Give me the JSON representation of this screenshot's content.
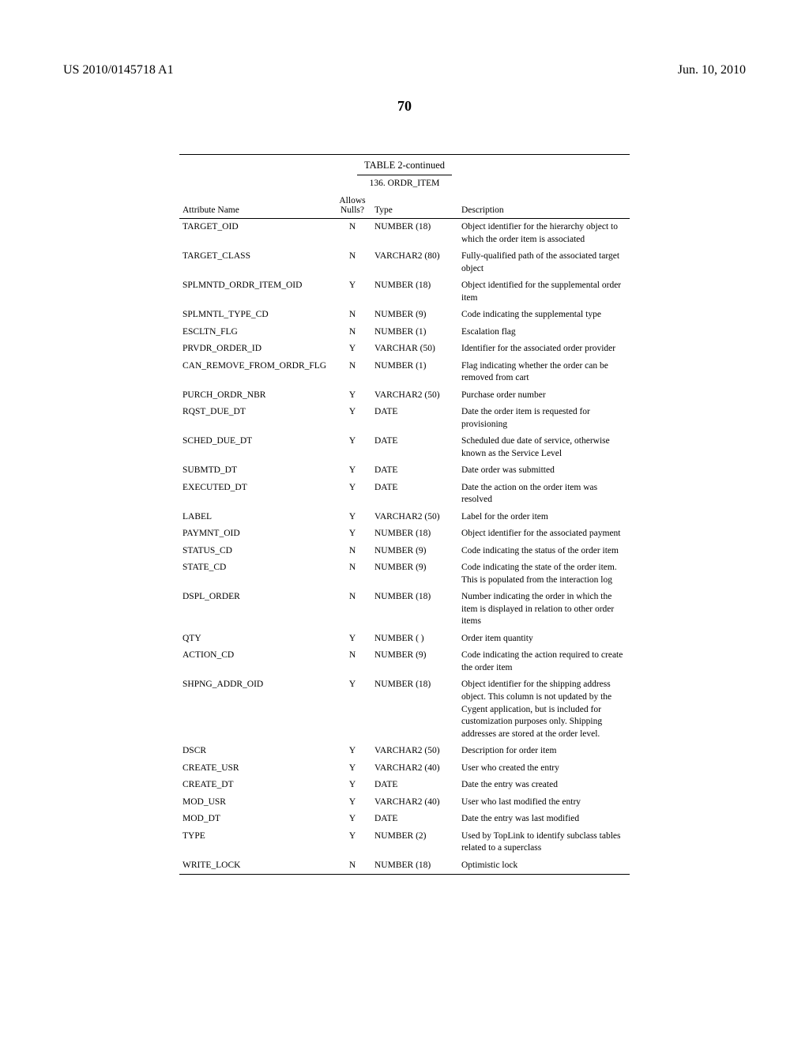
{
  "header": {
    "left": "US 2010/0145718 A1",
    "right": "Jun. 10, 2010",
    "page_number": "70"
  },
  "table": {
    "title": "TABLE 2-continued",
    "subtitle": "136. ORDR_ITEM",
    "columns": {
      "attr": "Attribute Name",
      "nulls_line1": "Allows",
      "nulls_line2": "Nulls?",
      "type": "Type",
      "desc": "Description"
    },
    "rows": [
      {
        "name": "TARGET_OID",
        "nulls": "N",
        "type": "NUMBER (18)",
        "desc": "Object identifier for the hierarchy object to which the order item is associated"
      },
      {
        "name": "TARGET_CLASS",
        "nulls": "N",
        "type": "VARCHAR2 (80)",
        "desc": "Fully-qualified path of the associated target object"
      },
      {
        "name": "SPLMNTD_ORDR_ITEM_OID",
        "nulls": "Y",
        "type": "NUMBER (18)",
        "desc": "Object identified for the supplemental order item"
      },
      {
        "name": "SPLMNTL_TYPE_CD",
        "nulls": "N",
        "type": "NUMBER (9)",
        "desc": "Code indicating the supplemental type"
      },
      {
        "name": "ESCLTN_FLG",
        "nulls": "N",
        "type": "NUMBER (1)",
        "desc": "Escalation flag"
      },
      {
        "name": "PRVDR_ORDER_ID",
        "nulls": "Y",
        "type": "VARCHAR (50)",
        "desc": "Identifier for the associated order provider"
      },
      {
        "name": "CAN_REMOVE_FROM_ORDR_FLG",
        "nulls": "N",
        "type": "NUMBER (1)",
        "desc": "Flag indicating whether the order can be removed from cart"
      },
      {
        "name": "PURCH_ORDR_NBR",
        "nulls": "Y",
        "type": "VARCHAR2 (50)",
        "desc": "Purchase order number"
      },
      {
        "name": "RQST_DUE_DT",
        "nulls": "Y",
        "type": "DATE",
        "desc": "Date the order item is requested for provisioning"
      },
      {
        "name": "SCHED_DUE_DT",
        "nulls": "Y",
        "type": "DATE",
        "desc": "Scheduled due date of service, otherwise known as the Service Level"
      },
      {
        "name": "SUBMTD_DT",
        "nulls": "Y",
        "type": "DATE",
        "desc": "Date order was submitted"
      },
      {
        "name": "EXECUTED_DT",
        "nulls": "Y",
        "type": "DATE",
        "desc": "Date the action on the order item was resolved"
      },
      {
        "name": "LABEL",
        "nulls": "Y",
        "type": "VARCHAR2 (50)",
        "desc": "Label for the order item"
      },
      {
        "name": "PAYMNT_OID",
        "nulls": "Y",
        "type": "NUMBER (18)",
        "desc": "Object identifier for the associated payment"
      },
      {
        "name": "STATUS_CD",
        "nulls": "N",
        "type": "NUMBER (9)",
        "desc": "Code indicating the status of the order item"
      },
      {
        "name": "STATE_CD",
        "nulls": "N",
        "type": "NUMBER (9)",
        "desc": "Code indicating the state of the order item. This is populated from the interaction log"
      },
      {
        "name": "DSPL_ORDER",
        "nulls": "N",
        "type": "NUMBER (18)",
        "desc": "Number indicating the order in which the item is displayed in relation to other order items"
      },
      {
        "name": "QTY",
        "nulls": "Y",
        "type": "NUMBER ( )",
        "desc": "Order item quantity"
      },
      {
        "name": "ACTION_CD",
        "nulls": "N",
        "type": "NUMBER (9)",
        "desc": "Code indicating the action required to create the order item"
      },
      {
        "name": "SHPNG_ADDR_OID",
        "nulls": "Y",
        "type": "NUMBER (18)",
        "desc": "Object identifier for the shipping address object. This column is not updated by the Cygent application, but is included for customization purposes only. Shipping addresses are stored at the order level."
      },
      {
        "name": "DSCR",
        "nulls": "Y",
        "type": "VARCHAR2 (50)",
        "desc": "Description for order item"
      },
      {
        "name": "CREATE_USR",
        "nulls": "Y",
        "type": "VARCHAR2 (40)",
        "desc": "User who created the entry"
      },
      {
        "name": "CREATE_DT",
        "nulls": "Y",
        "type": "DATE",
        "desc": "Date the entry was created"
      },
      {
        "name": "MOD_USR",
        "nulls": "Y",
        "type": "VARCHAR2 (40)",
        "desc": "User who last modified the entry"
      },
      {
        "name": "MOD_DT",
        "nulls": "Y",
        "type": "DATE",
        "desc": "Date the entry was last modified"
      },
      {
        "name": "TYPE",
        "nulls": "Y",
        "type": "NUMBER (2)",
        "desc": "Used by TopLink to identify subclass tables related to a superclass"
      },
      {
        "name": "WRITE_LOCK",
        "nulls": "N",
        "type": "NUMBER (18)",
        "desc": "Optimistic lock"
      }
    ]
  }
}
